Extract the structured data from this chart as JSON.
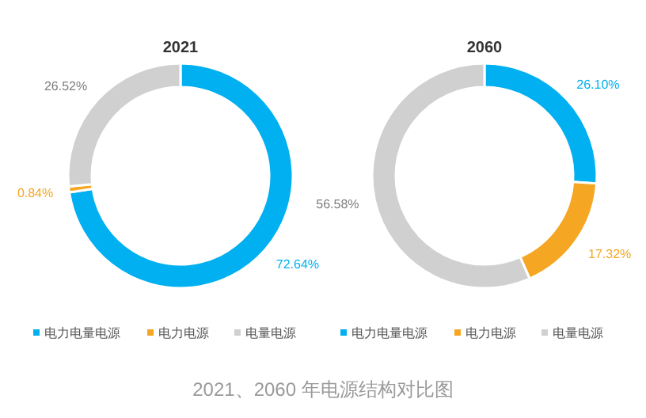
{
  "chart_data": [
    {
      "type": "donut",
      "title": "2021",
      "categories": [
        "电力电量电源",
        "电力电源",
        "电量电源"
      ],
      "values": [
        72.64,
        0.84,
        26.52
      ],
      "colors": [
        "#00b0f0",
        "#f5a623",
        "#d0d0d0"
      ],
      "value_labels": [
        "72.64%",
        "0.84%",
        "26.52%"
      ],
      "legend": "bottom",
      "annotations": [
        "2021、2060  年电源结构对比图"
      ]
    },
    {
      "type": "donut",
      "title": "2060",
      "categories": [
        "电力电量电源",
        "电力电源",
        "电量电源"
      ],
      "values": [
        26.1,
        17.32,
        56.58
      ],
      "colors": [
        "#00b0f0",
        "#f5a623",
        "#d0d0d0"
      ],
      "value_labels": [
        "26.10%",
        "17.32%",
        "56.58%"
      ],
      "legend": "bottom"
    }
  ]
}
